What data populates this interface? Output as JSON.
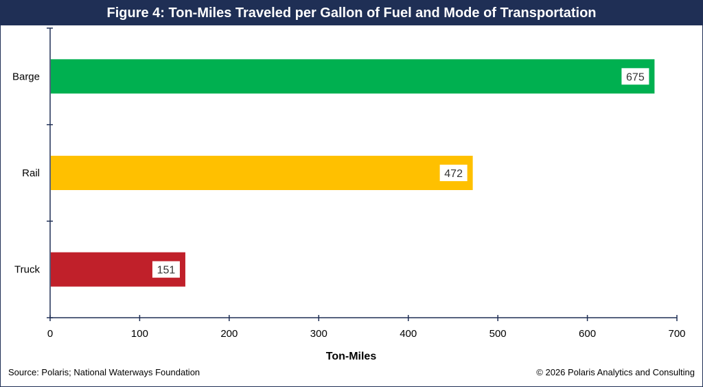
{
  "title": "Figure 4: Ton-Miles Traveled per Gallon of Fuel and Mode of Transportation",
  "source": "Source: Polaris; National Waterways Foundation",
  "copyright": "© 2026 Polaris Analytics and Consulting",
  "colors": {
    "header": "#1f2f55",
    "axis": "#1f2f55"
  },
  "chart_data": {
    "type": "bar",
    "orientation": "horizontal",
    "categories": [
      "Barge",
      "Rail",
      "Truck"
    ],
    "values": [
      675,
      472,
      151
    ],
    "bar_colors": [
      "#00b050",
      "#ffc000",
      "#c0202a"
    ],
    "xlabel": "Ton-Miles",
    "ylabel": "",
    "xlim": [
      0,
      700
    ],
    "xticks": [
      "0",
      "100",
      "200",
      "300",
      "400",
      "500",
      "600",
      "700"
    ],
    "grid": false,
    "legend": "none",
    "data_labels": [
      "675",
      "472",
      "151"
    ]
  }
}
